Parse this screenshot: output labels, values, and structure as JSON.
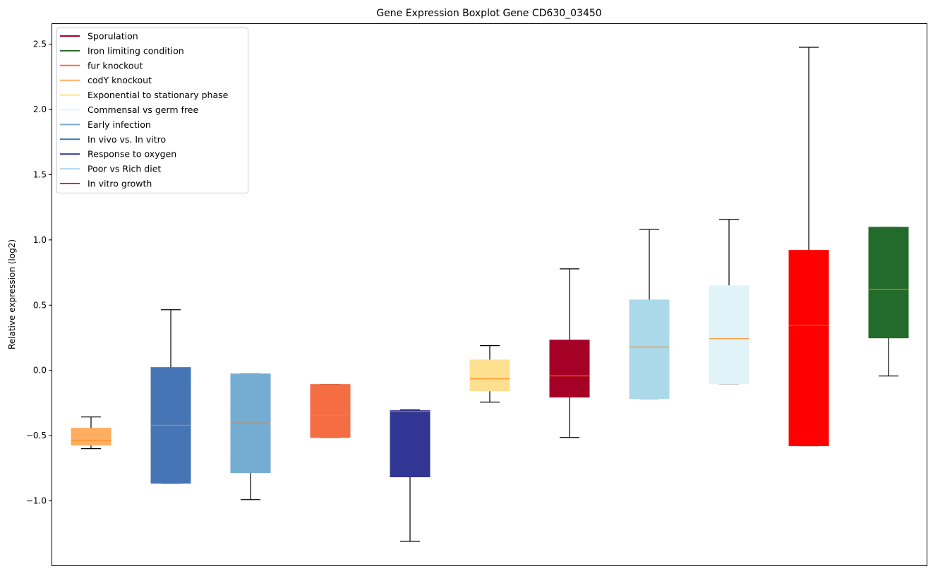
{
  "chart_data": {
    "type": "box",
    "title": "Gene Expression Boxplot Gene CD630_03450",
    "xlabel": "",
    "ylabel": "Relative expression (log2)",
    "ylim": [
      -1.5,
      2.66
    ],
    "yticks": [
      -1.0,
      -0.5,
      0.0,
      0.5,
      1.0,
      1.5,
      2.0,
      2.5
    ],
    "ytick_labels": [
      "−1.0",
      "−0.5",
      "0.0",
      "0.5",
      "1.0",
      "1.5",
      "2.0",
      "2.5"
    ],
    "grid": false,
    "legend_position": "top-left",
    "median_color": "#ff7f0e",
    "legend": [
      {
        "label": "Sporulation",
        "color": "#a50026"
      },
      {
        "label": "Iron limiting condition",
        "color": "#236b2a"
      },
      {
        "label": "fur knockout",
        "color": "#f46d43"
      },
      {
        "label": "codY knockout",
        "color": "#fdae61"
      },
      {
        "label": "Exponential to stationary phase",
        "color": "#fee090"
      },
      {
        "label": "Commensal vs germ free",
        "color": "#e0f3f8"
      },
      {
        "label": "Early infection",
        "color": "#74add1"
      },
      {
        "label": "In vivo vs. In vitro",
        "color": "#4575b4"
      },
      {
        "label": "Response to oxygen",
        "color": "#313695"
      },
      {
        "label": "Poor vs Rich diet",
        "color": "#abd9e9"
      },
      {
        "label": "In vitro growth",
        "color": "#ff0000"
      }
    ],
    "boxes": [
      {
        "name": "codY knockout",
        "color": "#fdae61",
        "whislo": -0.6,
        "q1": -0.573,
        "median": -0.535,
        "q3": -0.443,
        "whishi": -0.357
      },
      {
        "name": "In vivo vs. In vitro",
        "color": "#4575b4",
        "whislo": -0.865,
        "q1": -0.865,
        "median": -0.42,
        "q3": 0.022,
        "whishi": 0.465
      },
      {
        "name": "Early infection",
        "color": "#74add1",
        "whislo": -0.99,
        "q1": -0.784,
        "median": -0.403,
        "q3": -0.027,
        "whishi": -0.027
      },
      {
        "name": "fur knockout",
        "color": "#f46d43",
        "whislo": -0.514,
        "q1": -0.514,
        "median": -0.346,
        "q3": -0.108,
        "whishi": -0.108
      },
      {
        "name": "Response to oxygen",
        "color": "#313695",
        "whislo": -1.31,
        "q1": -0.816,
        "median": -0.316,
        "q3": -0.308,
        "whishi": -0.303
      },
      {
        "name": "Exponential to stationary phase",
        "color": "#fee090",
        "whislo": -0.243,
        "q1": -0.157,
        "median": -0.065,
        "q3": 0.08,
        "whishi": 0.19
      },
      {
        "name": "Sporulation",
        "color": "#a50026",
        "whislo": -0.514,
        "q1": -0.205,
        "median": -0.043,
        "q3": 0.232,
        "whishi": 0.778
      },
      {
        "name": "Poor vs Rich diet",
        "color": "#abd9e9",
        "whislo": -0.216,
        "q1": -0.216,
        "median": 0.178,
        "q3": 0.54,
        "whishi": 1.08
      },
      {
        "name": "Commensal vs germ free",
        "color": "#e0f3f8",
        "whislo": -0.103,
        "q1": -0.103,
        "median": 0.243,
        "q3": 0.649,
        "whishi": 1.157
      },
      {
        "name": "In vitro growth",
        "color": "#ff0000",
        "whislo": -0.578,
        "q1": -0.578,
        "median": 0.346,
        "q3": 0.92,
        "whishi": 2.476
      },
      {
        "name": "Iron limiting condition",
        "color": "#236b2a",
        "whislo": -0.043,
        "q1": 0.249,
        "median": 0.62,
        "q3": 1.097,
        "whishi": 1.097
      }
    ]
  }
}
